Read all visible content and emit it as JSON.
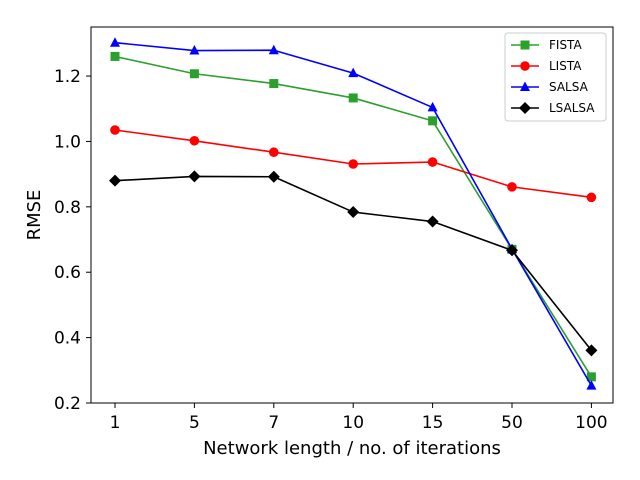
{
  "chart_data": {
    "type": "line",
    "title": "",
    "xlabel": "Network length / no. of iterations",
    "ylabel": "RMSE",
    "categories": [
      "1",
      "5",
      "7",
      "10",
      "15",
      "50",
      "100"
    ],
    "ylim": [
      0.2,
      1.35
    ],
    "yticks": [
      "0.2",
      "0.4",
      "0.6",
      "0.8",
      "1.0",
      "1.2"
    ],
    "grid": false,
    "legend_position": "top-right",
    "series": [
      {
        "name": "FISTA",
        "color": "#2ca02c",
        "marker": "square",
        "values": [
          1.26,
          1.207,
          1.177,
          1.133,
          1.063,
          0.67,
          0.28
        ]
      },
      {
        "name": "LISTA",
        "color": "#ff0000",
        "marker": "circle",
        "values": [
          1.035,
          1.002,
          0.967,
          0.931,
          0.937,
          0.861,
          0.829
        ]
      },
      {
        "name": "SALSA",
        "color": "#0000ff",
        "marker": "triangle",
        "values": [
          1.302,
          1.278,
          1.279,
          1.209,
          1.104,
          0.671,
          0.253
        ]
      },
      {
        "name": "LSALSA",
        "color": "#000000",
        "marker": "diamond",
        "values": [
          0.88,
          0.893,
          0.892,
          0.784,
          0.755,
          0.667,
          0.361
        ]
      }
    ]
  }
}
